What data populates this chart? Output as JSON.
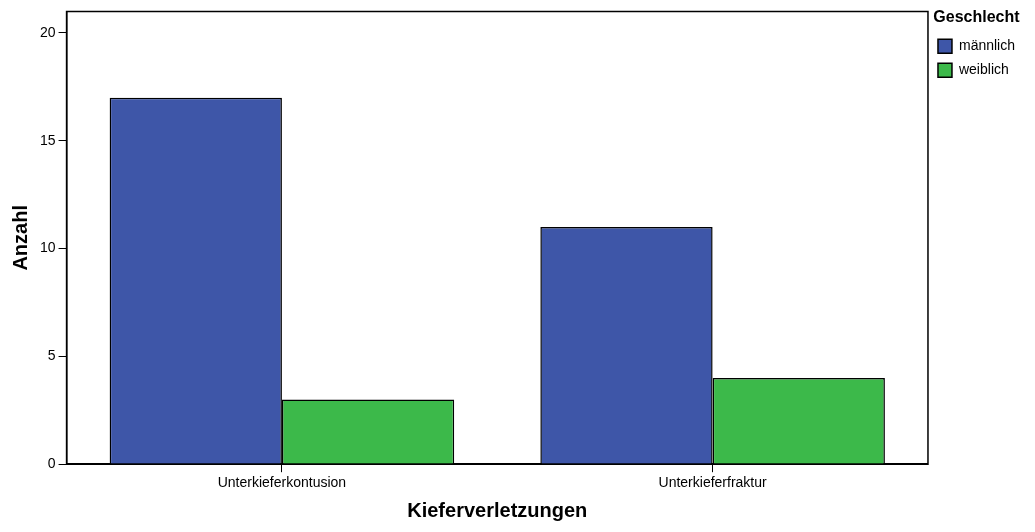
{
  "chart_data": {
    "type": "bar",
    "xlabel": "Kieferverletzungen",
    "ylabel": "Anzahl",
    "legend_title": "Geschlecht",
    "categories": [
      "Unterkieferkontusion",
      "Unterkieferfraktur"
    ],
    "series": [
      {
        "name": "männlich",
        "color": "#3e56a8",
        "values": [
          17,
          11
        ]
      },
      {
        "name": "weiblich",
        "color": "#3cb94a",
        "values": [
          3,
          4
        ]
      }
    ],
    "ylim": [
      0,
      21
    ],
    "yticks": [
      0,
      5,
      10,
      15,
      20
    ],
    "grid": false,
    "legend": "top right"
  }
}
